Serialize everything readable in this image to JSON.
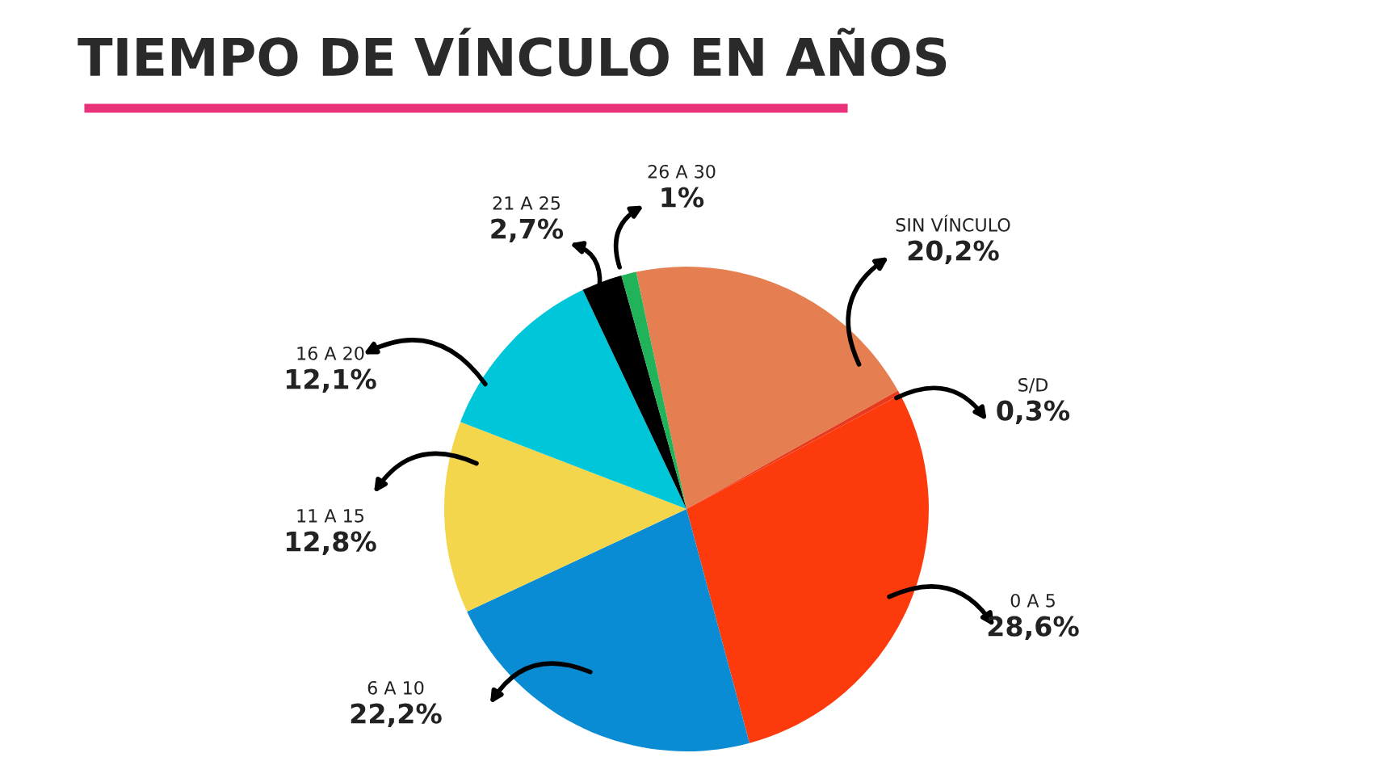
{
  "chart_data": {
    "type": "pie",
    "title": "TIEMPO DE VÍNCULO EN AÑOS",
    "categories": [
      "SIN VÍNCULO",
      "S/D",
      "0 A 5",
      "6 A 10",
      "11 A 15",
      "16 A 20",
      "21 A 25",
      "26 A 30"
    ],
    "values": [
      20.2,
      0.3,
      28.6,
      22.2,
      12.8,
      12.1,
      2.7,
      1
    ],
    "value_labels": [
      "20,2%",
      "0,3%",
      "28,6%",
      "22,2%",
      "12,8%",
      "12,1%",
      "2,7%",
      "1%"
    ],
    "colors": [
      "#e57f52",
      "#e83a1c",
      "#fd3a0c",
      "#0a8cd4",
      "#f3d64c",
      "#00c6da",
      "#000000",
      "#20b35a"
    ]
  }
}
